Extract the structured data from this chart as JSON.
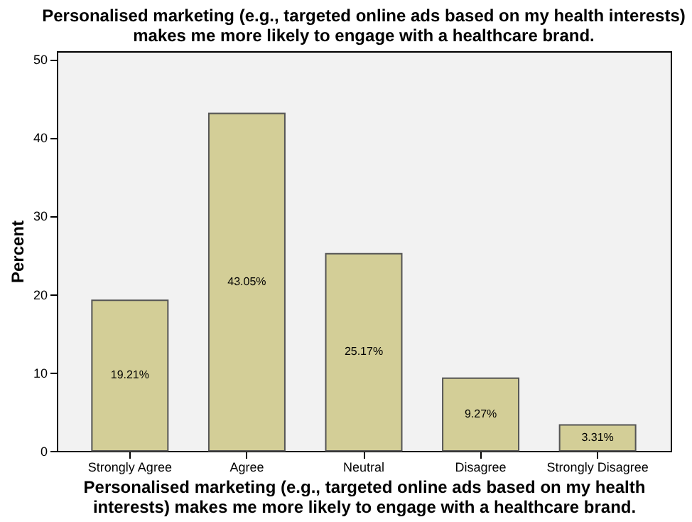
{
  "chart_data": {
    "type": "bar",
    "title": [
      "Personalised marketing (e.g., targeted online ads based on my health interests)",
      "makes me more likely to engage with a healthcare brand."
    ],
    "xlabel": [
      "Personalised marketing (e.g., targeted online ads based on my health",
      "interests) makes me more likely to engage with a healthcare brand."
    ],
    "ylabel": "Percent",
    "categories": [
      "Strongly Agree",
      "Agree",
      "Neutral",
      "Disagree",
      "Strongly Disagree"
    ],
    "values": [
      19.21,
      43.05,
      25.17,
      9.27,
      3.31
    ],
    "value_labels": [
      "19.21%",
      "43.05%",
      "25.17%",
      "9.27%",
      "3.31%"
    ],
    "color": "#d3ce97",
    "ylim": [
      0,
      51
    ],
    "yticks": [
      0,
      10,
      20,
      30,
      40,
      50
    ],
    "grid": false
  }
}
